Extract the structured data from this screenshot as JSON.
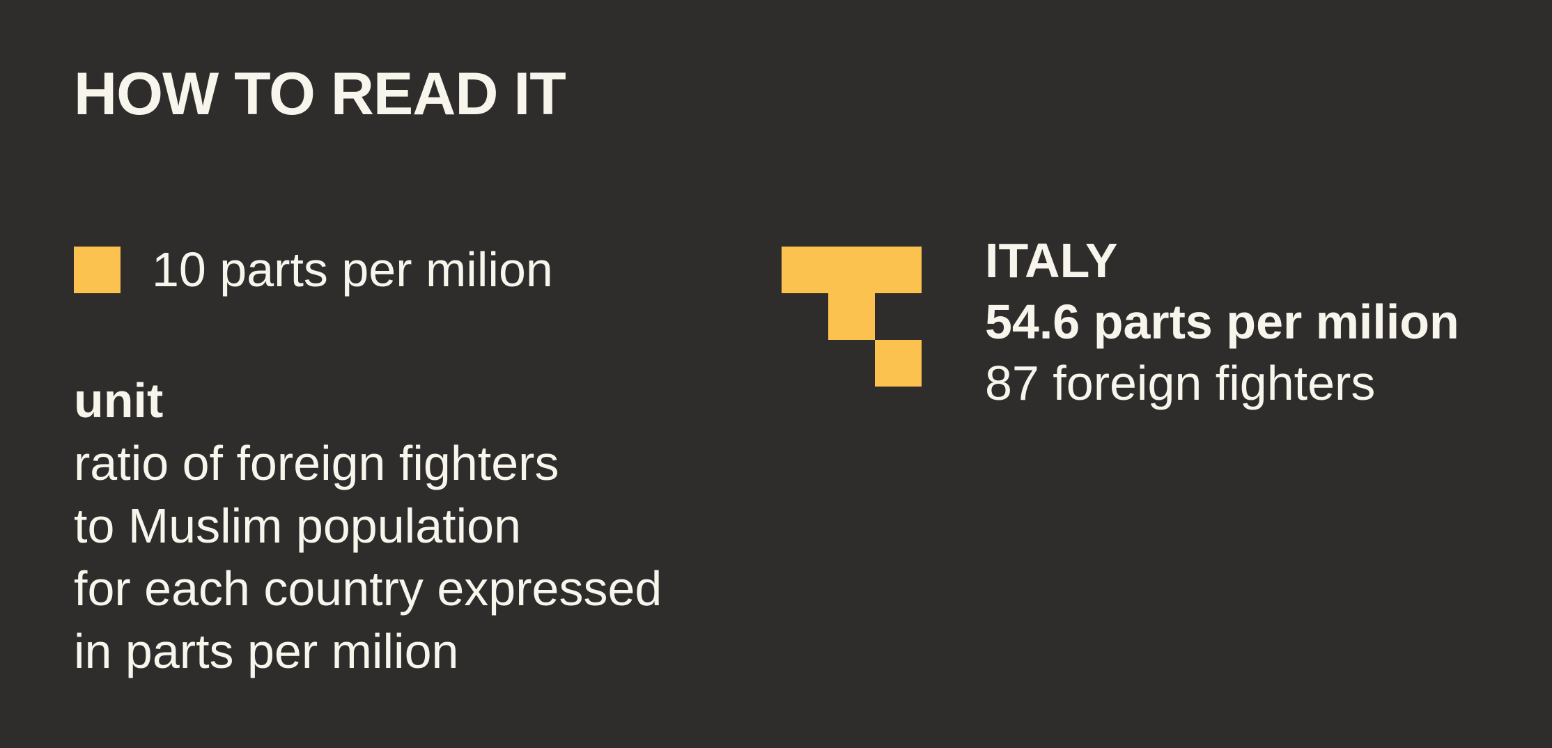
{
  "title": "HOW TO READ IT",
  "legend": {
    "square_color": "#fcc250",
    "label": "10 parts per milion"
  },
  "unit": {
    "heading": "unit",
    "lines": [
      "ratio of foreign fighters",
      "to Muslim population",
      "for each country expressed",
      "in parts per milion"
    ]
  },
  "example": {
    "country": "ITALY",
    "ratio_text": "54.6 parts per milion",
    "fighters_text": "87 foreign fighters",
    "ratio_value": 54.6,
    "fighters_value": 87
  },
  "colors": {
    "background": "#2e2d2c",
    "text": "#f8f6ec",
    "accent": "#fcc250"
  }
}
